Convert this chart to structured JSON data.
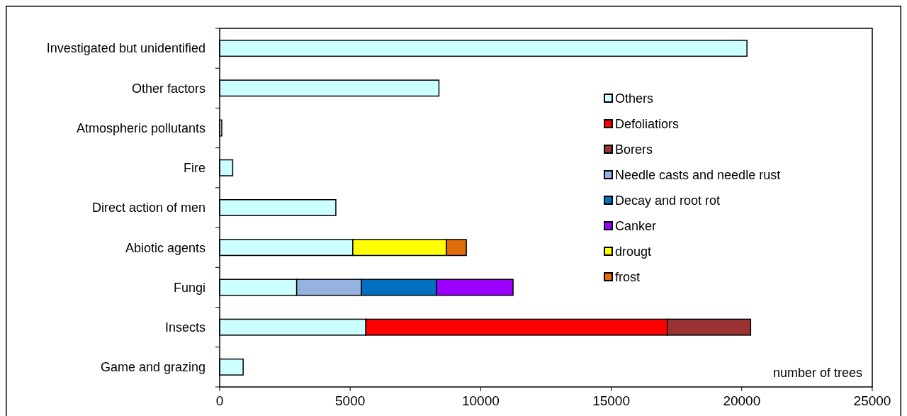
{
  "chart_data": {
    "type": "bar",
    "orientation": "horizontal",
    "stacked": true,
    "xlabel": "number of trees",
    "categories": [
      "Investigated but unidentified",
      "Other factors",
      "Atmospheric pollutants",
      "Fire",
      "Direct action of men",
      "Abiotic agents",
      "Fungi",
      "Insects",
      "Game and grazing"
    ],
    "series": [
      {
        "name": "Others",
        "color": "#ccffff",
        "values": [
          20200,
          8400,
          80,
          500,
          4450,
          5100,
          2950,
          5600,
          900
        ]
      },
      {
        "name": "Defoliatiors",
        "color": "#ff0000",
        "values": [
          null,
          null,
          null,
          null,
          null,
          null,
          null,
          11550,
          null
        ]
      },
      {
        "name": "Borers",
        "color": "#993333",
        "values": [
          null,
          null,
          null,
          null,
          null,
          null,
          null,
          3190,
          null
        ]
      },
      {
        "name": "Needle casts and needle rust",
        "color": "#95b3e0",
        "values": [
          null,
          null,
          null,
          null,
          null,
          null,
          2480,
          null,
          null
        ]
      },
      {
        "name": "Decay and root rot",
        "color": "#0070c0",
        "values": [
          null,
          null,
          null,
          null,
          null,
          null,
          2880,
          null,
          null
        ]
      },
      {
        "name": "Canker",
        "color": "#9900ff",
        "values": [
          null,
          null,
          null,
          null,
          null,
          null,
          2930,
          null,
          null
        ]
      },
      {
        "name": "drougt",
        "color": "#ffff00",
        "values": [
          null,
          null,
          null,
          null,
          null,
          3590,
          null,
          null,
          null
        ]
      },
      {
        "name": "frost",
        "color": "#e36c0a",
        "values": [
          null,
          null,
          null,
          null,
          null,
          760,
          null,
          null,
          null
        ]
      }
    ],
    "xlim": [
      0,
      25000
    ],
    "xticks": [
      0,
      5000,
      10000,
      15000,
      20000,
      25000
    ],
    "grid": false,
    "legend": "right"
  }
}
